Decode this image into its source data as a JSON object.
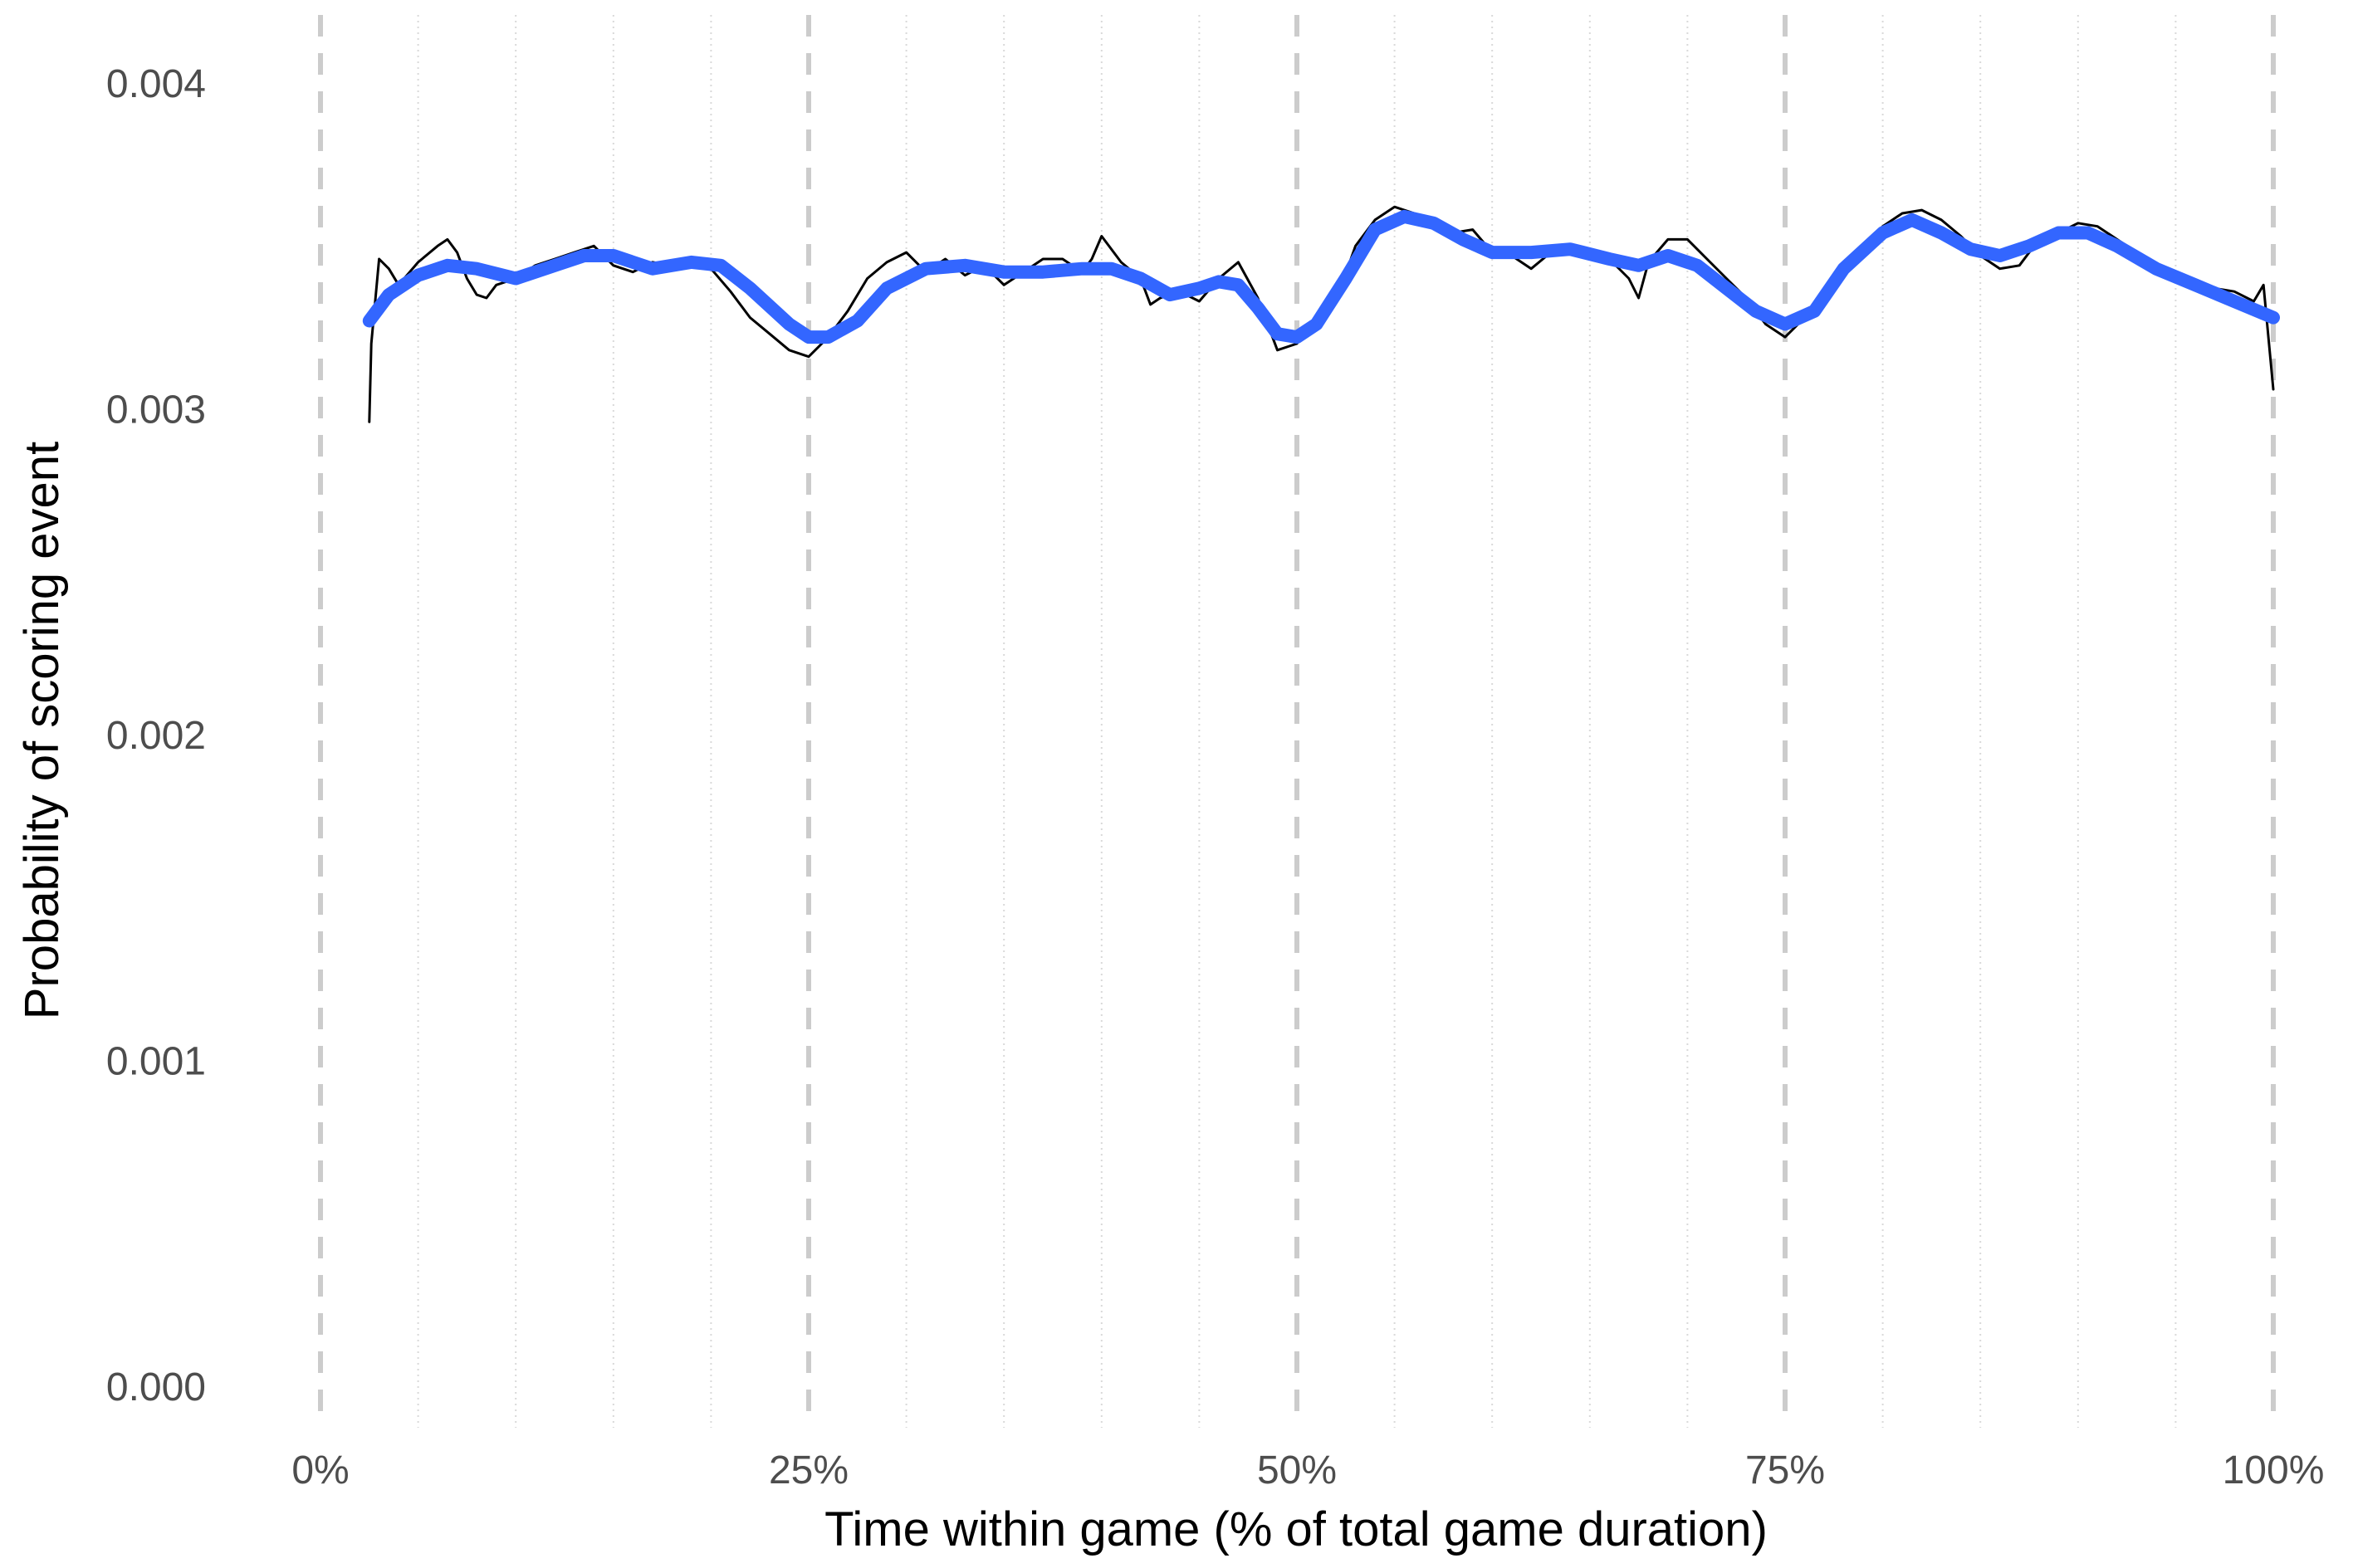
{
  "chart_data": {
    "type": "line",
    "title": "",
    "xlabel": "Time within game (% of total game duration)",
    "ylabel": "Probability of scoring event",
    "xlim": [
      -2.5,
      102.5
    ],
    "ylim": [
      -0.00015,
      0.00418
    ],
    "x_ticks": [
      0,
      25,
      50,
      75,
      100
    ],
    "x_tick_labels": [
      "0%",
      "25%",
      "50%",
      "75%",
      "100%"
    ],
    "y_ticks": [
      0.0,
      0.001,
      0.002,
      0.003,
      0.004
    ],
    "y_tick_labels": [
      "0.000",
      "0.001",
      "0.002",
      "0.003",
      "0.004"
    ],
    "grid": "vertical only: dashed major lines at quarters, dotted minor lines every 5%",
    "legend": "none",
    "colors": {
      "raw": "#000000",
      "smooth": "#3366ff",
      "major_grid": "#cccccc",
      "minor_grid": "#d9d9d9"
    },
    "series": [
      {
        "style": "thin black line (raw)",
        "x": [
          2.5,
          2.6,
          3.0,
          3.5,
          4.0,
          5.0,
          6.0,
          6.5,
          7.0,
          7.5,
          8.0,
          8.5,
          9.0,
          10.0,
          11.0,
          12.0,
          13.0,
          14.0,
          15.0,
          16.0,
          17.0,
          18.0,
          19.0,
          20.0,
          21.0,
          22.0,
          23.0,
          24.0,
          25.0,
          25.5,
          26.0,
          27.0,
          28.0,
          29.0,
          30.0,
          31.0,
          32.0,
          33.0,
          34.0,
          35.0,
          36.0,
          37.0,
          38.0,
          39.0,
          39.5,
          40.0,
          41.0,
          42.0,
          42.5,
          43.0,
          44.0,
          45.0,
          46.0,
          47.0,
          48.0,
          49.0,
          50.0,
          51.0,
          52.0,
          53.0,
          54.0,
          55.0,
          56.0,
          57.0,
          58.0,
          59.0,
          60.0,
          61.0,
          62.0,
          63.0,
          64.0,
          65.0,
          66.0,
          67.0,
          67.5,
          68.0,
          69.0,
          70.0,
          71.0,
          72.0,
          73.0,
          74.0,
          75.0,
          76.0,
          77.0,
          78.0,
          79.0,
          80.0,
          81.0,
          82.0,
          83.0,
          84.0,
          85.0,
          86.0,
          87.0,
          88.0,
          89.0,
          90.0,
          91.0,
          92.0,
          93.0,
          94.0,
          95.0,
          96.0,
          97.0,
          98.0,
          99.0,
          99.5,
          100.0
        ],
        "y": [
          0.00296,
          0.0032,
          0.00346,
          0.00343,
          0.00338,
          0.00345,
          0.0035,
          0.00352,
          0.00348,
          0.0034,
          0.00335,
          0.00334,
          0.00338,
          0.0034,
          0.00344,
          0.00346,
          0.00348,
          0.0035,
          0.00344,
          0.00342,
          0.00345,
          0.00344,
          0.00346,
          0.00343,
          0.00336,
          0.00328,
          0.00323,
          0.00318,
          0.00316,
          0.00319,
          0.00322,
          0.0033,
          0.0034,
          0.00345,
          0.00348,
          0.00342,
          0.00346,
          0.00341,
          0.00344,
          0.00338,
          0.00342,
          0.00346,
          0.00346,
          0.00342,
          0.00346,
          0.00353,
          0.00345,
          0.0034,
          0.00332,
          0.00334,
          0.00336,
          0.00333,
          0.0034,
          0.00345,
          0.00334,
          0.00318,
          0.0032,
          0.00328,
          0.00333,
          0.0035,
          0.00358,
          0.00362,
          0.0036,
          0.00358,
          0.00354,
          0.00355,
          0.00348,
          0.00347,
          0.00343,
          0.00348,
          0.0035,
          0.00346,
          0.00346,
          0.0034,
          0.00334,
          0.00345,
          0.00352,
          0.00352,
          0.00346,
          0.0034,
          0.00334,
          0.00326,
          0.00322,
          0.00328,
          0.00332,
          0.00345,
          0.0035,
          0.00356,
          0.0036,
          0.00361,
          0.00358,
          0.00353,
          0.00347,
          0.00343,
          0.00344,
          0.00352,
          0.00354,
          0.00357,
          0.00356,
          0.00352,
          0.00348,
          0.00344,
          0.0034,
          0.00338,
          0.00337,
          0.00336,
          0.00333,
          0.00338,
          0.00306
        ]
      },
      {
        "style": "thick blue smoothed line",
        "x": [
          2.5,
          3.5,
          5.0,
          6.5,
          8.0,
          10.0,
          12.0,
          13.5,
          15.0,
          17.0,
          19.0,
          20.5,
          22.0,
          24.0,
          25.0,
          26.0,
          27.5,
          29.0,
          31.0,
          33.0,
          35.0,
          37.0,
          39.0,
          40.5,
          42.0,
          43.5,
          45.0,
          46.0,
          47.0,
          48.0,
          49.0,
          50.0,
          51.0,
          52.5,
          54.0,
          55.5,
          57.0,
          58.5,
          60.0,
          62.0,
          64.0,
          66.0,
          67.5,
          69.0,
          70.5,
          72.0,
          73.5,
          75.0,
          76.5,
          78.0,
          80.0,
          81.5,
          83.0,
          84.5,
          86.0,
          87.5,
          89.0,
          90.5,
          92.0,
          94.0,
          96.0,
          98.0,
          100.0
        ],
        "y": [
          0.00327,
          0.00335,
          0.00341,
          0.00344,
          0.00343,
          0.0034,
          0.00344,
          0.00347,
          0.00347,
          0.00343,
          0.00345,
          0.00344,
          0.00337,
          0.00326,
          0.00322,
          0.00322,
          0.00327,
          0.00337,
          0.00343,
          0.00344,
          0.00342,
          0.00342,
          0.00343,
          0.00343,
          0.0034,
          0.00335,
          0.00337,
          0.00339,
          0.00338,
          0.00331,
          0.00323,
          0.00322,
          0.00326,
          0.0034,
          0.00355,
          0.00359,
          0.00357,
          0.00352,
          0.00348,
          0.00348,
          0.00349,
          0.00346,
          0.00344,
          0.00347,
          0.00344,
          0.00337,
          0.0033,
          0.00326,
          0.0033,
          0.00343,
          0.00354,
          0.00358,
          0.00354,
          0.00349,
          0.00347,
          0.0035,
          0.00354,
          0.00354,
          0.0035,
          0.00343,
          0.00338,
          0.00333,
          0.00328
        ]
      }
    ]
  }
}
